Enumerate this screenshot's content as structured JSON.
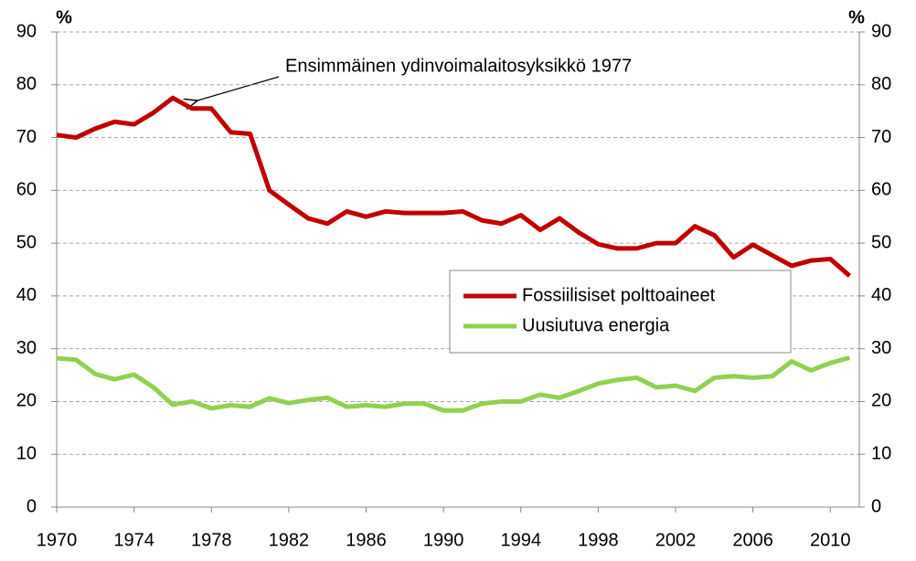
{
  "chart_data": {
    "type": "line",
    "annotation": "Ensimmäinen ydinvoimalaitosyksikkö 1977",
    "y_label": "%",
    "y2_label": "%",
    "x": [
      1970,
      1971,
      1972,
      1973,
      1974,
      1975,
      1976,
      1977,
      1978,
      1979,
      1980,
      1981,
      1982,
      1983,
      1984,
      1985,
      1986,
      1987,
      1988,
      1989,
      1990,
      1991,
      1992,
      1993,
      1994,
      1995,
      1996,
      1997,
      1998,
      1999,
      2000,
      2001,
      2002,
      2003,
      2004,
      2005,
      2006,
      2007,
      2008,
      2009,
      2010,
      2011
    ],
    "series": [
      {
        "name": "Fossiilisiset polttoaineet",
        "color": "#c00000",
        "values": [
          70.5,
          70,
          71.7,
          73,
          72.5,
          74.7,
          77.5,
          75.5,
          75.5,
          71,
          70.7,
          60,
          57.3,
          54.7,
          53.7,
          56,
          55,
          56,
          55.7,
          55.7,
          55.7,
          56,
          54.3,
          53.7,
          55.3,
          52.5,
          54.7,
          52,
          49.8,
          49,
          49,
          50,
          50,
          53.2,
          51.5,
          47.3,
          49.7,
          47.7,
          45.7,
          46.7,
          47,
          43.8
        ]
      },
      {
        "name": "Uusiutuva energia",
        "color": "#92d050",
        "values": [
          28.2,
          27.9,
          25.2,
          24.2,
          25.1,
          22.7,
          19.4,
          20,
          18.7,
          19.3,
          19,
          20.6,
          19.7,
          20.3,
          20.7,
          19,
          19.3,
          19,
          19.6,
          19.6,
          18.3,
          18.3,
          19.6,
          20,
          20,
          21.3,
          20.7,
          22,
          23.4,
          24.1,
          24.5,
          22.7,
          23,
          22,
          24.5,
          24.8,
          24.5,
          24.8,
          27.6,
          25.9,
          27.3,
          28.3
        ]
      }
    ],
    "xlim": [
      1970,
      2011.5
    ],
    "xticks": [
      1970,
      1974,
      1978,
      1982,
      1986,
      1990,
      1994,
      1998,
      2002,
      2006,
      2010
    ],
    "ylim": [
      0,
      90
    ],
    "yticks": [
      0,
      10,
      20,
      30,
      40,
      50,
      60,
      70,
      80,
      90
    ],
    "y2lim": [
      0,
      90
    ],
    "y2ticks": [
      0,
      10,
      20,
      30,
      40,
      50,
      60,
      70,
      80,
      90
    ],
    "grid": true,
    "legend": "right"
  }
}
